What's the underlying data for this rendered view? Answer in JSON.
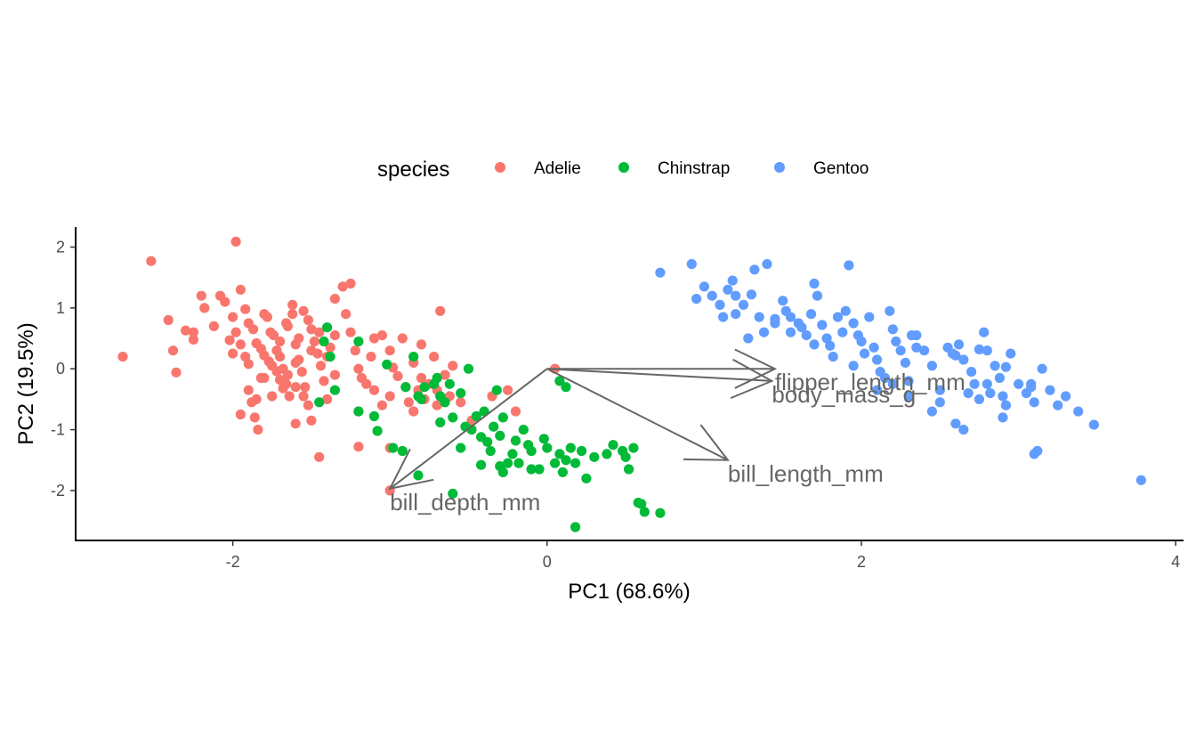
{
  "chart_data": {
    "type": "scatter",
    "title": "",
    "xlabel": "PC1 (68.6%)",
    "ylabel": "PC2 (19.5%)",
    "xlim": [
      -3.0,
      4.05
    ],
    "ylim": [
      -2.82,
      2.3
    ],
    "xticks": [
      -2,
      0,
      2,
      4
    ],
    "xtick_labels": [
      "-2",
      "0",
      "2",
      "4"
    ],
    "yticks": [
      -2,
      -1,
      0,
      1,
      2
    ],
    "ytick_labels": [
      "-2",
      "-1",
      "0",
      "1",
      "2"
    ],
    "grid": false,
    "legend": {
      "title": "species",
      "placement": "top"
    },
    "series": [
      {
        "name": "Adelie",
        "color": "#F8766D",
        "points": [
          [
            -2.7,
            0.2
          ],
          [
            -2.52,
            1.77
          ],
          [
            -2.41,
            0.8
          ],
          [
            -2.38,
            0.3
          ],
          [
            -2.36,
            -0.06
          ],
          [
            -2.3,
            0.63
          ],
          [
            -2.25,
            0.6
          ],
          [
            -2.25,
            0.48
          ],
          [
            -2.2,
            1.2
          ],
          [
            -2.18,
            1.0
          ],
          [
            -2.12,
            0.7
          ],
          [
            -2.08,
            1.2
          ],
          [
            -2.05,
            1.1
          ],
          [
            -2.02,
            0.47
          ],
          [
            -1.98,
            2.09
          ],
          [
            -1.95,
            1.3
          ],
          [
            -1.92,
            0.98
          ],
          [
            -1.9,
            0.75
          ],
          [
            -1.87,
            0.65
          ],
          [
            -1.85,
            0.42
          ],
          [
            -1.82,
            0.33
          ],
          [
            -1.8,
            0.22
          ],
          [
            -1.77,
            0.12
          ],
          [
            -1.75,
            0.05
          ],
          [
            -1.72,
            -0.04
          ],
          [
            -1.7,
            -0.18
          ],
          [
            -1.68,
            -0.32
          ],
          [
            -1.95,
            0.4
          ],
          [
            -1.92,
            0.2
          ],
          [
            -1.9,
            -0.35
          ],
          [
            -1.88,
            -0.55
          ],
          [
            -1.86,
            -0.8
          ],
          [
            -1.84,
            -1.0
          ],
          [
            -1.8,
            0.9
          ],
          [
            -1.78,
            0.85
          ],
          [
            -1.76,
            0.6
          ],
          [
            -1.74,
            0.55
          ],
          [
            -1.72,
            0.3
          ],
          [
            -1.7,
            0.2
          ],
          [
            -1.68,
            0.0
          ],
          [
            -1.66,
            -0.25
          ],
          [
            -1.64,
            -0.45
          ],
          [
            -1.62,
            1.05
          ],
          [
            -1.6,
            0.4
          ],
          [
            -1.58,
            0.15
          ],
          [
            -1.56,
            -0.05
          ],
          [
            -1.54,
            -0.3
          ],
          [
            -1.52,
            -0.6
          ],
          [
            -1.5,
            -0.85
          ],
          [
            -1.55,
            0.95
          ],
          [
            -1.52,
            0.8
          ],
          [
            -1.5,
            0.65
          ],
          [
            -1.48,
            0.45
          ],
          [
            -1.46,
            0.25
          ],
          [
            -1.44,
            0.05
          ],
          [
            -1.42,
            -0.2
          ],
          [
            -1.4,
            -0.5
          ],
          [
            -1.38,
            0.35
          ],
          [
            -1.35,
            0.55
          ],
          [
            -1.3,
            1.35
          ],
          [
            -1.28,
            0.9
          ],
          [
            -1.25,
            0.6
          ],
          [
            -1.22,
            0.3
          ],
          [
            -1.2,
            0.0
          ],
          [
            -1.35,
            1.15
          ],
          [
            -1.25,
            1.4
          ],
          [
            -1.18,
            -0.15
          ],
          [
            -1.15,
            -0.25
          ],
          [
            -1.12,
            0.2
          ],
          [
            -1.1,
            -0.35
          ],
          [
            -1.05,
            -0.6
          ],
          [
            -1.0,
            -0.45
          ],
          [
            -0.98,
            0.02
          ],
          [
            -0.95,
            -0.12
          ],
          [
            -0.92,
            0.5
          ],
          [
            -0.9,
            -0.3
          ],
          [
            -0.88,
            -0.55
          ],
          [
            -0.85,
            -0.7
          ],
          [
            -0.82,
            -0.35
          ],
          [
            -0.8,
            0.4
          ],
          [
            -0.78,
            -0.5
          ],
          [
            -0.75,
            -0.25
          ],
          [
            -0.72,
            0.2
          ],
          [
            -0.7,
            -0.35
          ],
          [
            -0.68,
            0.95
          ],
          [
            -0.65,
            -0.1
          ],
          [
            -0.62,
            -0.45
          ],
          [
            -0.55,
            -0.55
          ],
          [
            -0.48,
            -0.85
          ],
          [
            -0.35,
            -0.45
          ],
          [
            -1.6,
            -0.3
          ],
          [
            -1.65,
            0.7
          ],
          [
            -1.58,
            0.5
          ],
          [
            -1.45,
            -1.45
          ],
          [
            -1.4,
            0.2
          ],
          [
            -1.35,
            -0.1
          ],
          [
            -1.1,
            0.5
          ],
          [
            -1.05,
            0.55
          ],
          [
            -1.0,
            0.3
          ],
          [
            -1.2,
            -1.28
          ],
          [
            -1.0,
            -1.3
          ],
          [
            -1.95,
            -0.75
          ],
          [
            -1.85,
            -0.5
          ],
          [
            -1.82,
            -0.15
          ],
          [
            -1.75,
            -0.45
          ],
          [
            -1.7,
            0.45
          ],
          [
            -1.66,
            0.75
          ],
          [
            -1.62,
            0.9
          ],
          [
            -2.0,
            0.85
          ],
          [
            -1.98,
            0.6
          ],
          [
            -2.0,
            0.25
          ],
          [
            -1.9,
            0.08
          ],
          [
            -1.6,
            -0.9
          ],
          [
            -1.65,
            -0.1
          ],
          [
            -1.8,
            -0.15
          ],
          [
            -1.5,
            0.3
          ],
          [
            -1.45,
            0.6
          ],
          [
            -1.55,
            -0.45
          ],
          [
            -1.6,
            0.1
          ],
          [
            -1.2,
            -0.7
          ],
          [
            -0.85,
            0.1
          ],
          [
            -0.8,
            -0.15
          ],
          [
            -1.0,
            -2.0
          ],
          [
            0.05,
            0.0
          ],
          [
            -0.2,
            -0.7
          ],
          [
            -0.25,
            -0.35
          ],
          [
            -0.7,
            -0.6
          ],
          [
            -0.6,
            0.05
          ]
        ]
      },
      {
        "name": "Chinstrap",
        "color": "#00BA38",
        "points": [
          [
            -1.4,
            0.68
          ],
          [
            -1.42,
            0.45
          ],
          [
            -1.38,
            0.2
          ],
          [
            -1.2,
            0.45
          ],
          [
            -1.35,
            -0.35
          ],
          [
            -1.2,
            -0.7
          ],
          [
            -1.1,
            -0.78
          ],
          [
            -1.08,
            -1.02
          ],
          [
            -1.02,
            0.07
          ],
          [
            -0.98,
            -1.3
          ],
          [
            -0.9,
            -0.3
          ],
          [
            -0.85,
            0.2
          ],
          [
            -0.82,
            -0.45
          ],
          [
            -0.8,
            -0.5
          ],
          [
            -0.78,
            -0.3
          ],
          [
            -0.72,
            -0.25
          ],
          [
            -0.7,
            -0.15
          ],
          [
            -0.68,
            -0.45
          ],
          [
            -0.65,
            -0.55
          ],
          [
            -0.6,
            -0.8
          ],
          [
            -0.55,
            -0.4
          ],
          [
            -0.52,
            -0.95
          ],
          [
            -0.5,
            0.0
          ],
          [
            -0.48,
            -1.0
          ],
          [
            -0.45,
            -0.78
          ],
          [
            -0.42,
            -1.12
          ],
          [
            -0.4,
            -0.7
          ],
          [
            -0.38,
            -1.2
          ],
          [
            -0.36,
            -1.35
          ],
          [
            -0.34,
            -0.95
          ],
          [
            -0.3,
            -1.1
          ],
          [
            -0.28,
            -0.8
          ],
          [
            -0.25,
            -1.55
          ],
          [
            -0.22,
            -1.4
          ],
          [
            -0.2,
            -1.18
          ],
          [
            -0.18,
            -1.55
          ],
          [
            -0.15,
            -1.0
          ],
          [
            -0.12,
            -1.25
          ],
          [
            -0.1,
            -1.35
          ],
          [
            -0.05,
            -1.65
          ],
          [
            -0.02,
            -1.15
          ],
          [
            0.0,
            -1.3
          ],
          [
            0.05,
            -1.55
          ],
          [
            0.08,
            -1.4
          ],
          [
            0.1,
            -1.7
          ],
          [
            0.12,
            -1.5
          ],
          [
            0.15,
            -1.3
          ],
          [
            0.18,
            -1.55
          ],
          [
            0.22,
            -1.35
          ],
          [
            0.25,
            -1.8
          ],
          [
            0.3,
            -1.45
          ],
          [
            0.38,
            -1.4
          ],
          [
            0.42,
            -1.25
          ],
          [
            0.48,
            -1.35
          ],
          [
            0.5,
            -1.45
          ],
          [
            0.52,
            -1.65
          ],
          [
            0.55,
            -1.3
          ],
          [
            0.58,
            -2.2
          ],
          [
            0.6,
            -2.22
          ],
          [
            0.62,
            -2.35
          ],
          [
            0.72,
            -2.37
          ],
          [
            0.18,
            -2.6
          ],
          [
            -0.1,
            -1.65
          ],
          [
            -0.3,
            -1.6
          ],
          [
            -0.42,
            -1.58
          ],
          [
            -0.6,
            -2.05
          ],
          [
            -0.82,
            -1.75
          ],
          [
            -0.92,
            -1.35
          ],
          [
            -1.45,
            -0.55
          ],
          [
            -0.68,
            -0.88
          ],
          [
            -0.55,
            -1.3
          ],
          [
            0.08,
            -0.2
          ],
          [
            0.12,
            -0.3
          ],
          [
            -0.32,
            -0.35
          ],
          [
            -0.62,
            -0.25
          ],
          [
            -0.28,
            -1.7
          ]
        ]
      },
      {
        "name": "Gentoo",
        "color": "#619CFF",
        "points": [
          [
            0.72,
            1.58
          ],
          [
            0.92,
            1.72
          ],
          [
            0.95,
            1.15
          ],
          [
            1.0,
            1.35
          ],
          [
            1.05,
            1.2
          ],
          [
            1.1,
            1.05
          ],
          [
            1.12,
            0.85
          ],
          [
            1.15,
            1.3
          ],
          [
            1.18,
            1.45
          ],
          [
            1.2,
            1.2
          ],
          [
            1.2,
            0.9
          ],
          [
            1.25,
            1.05
          ],
          [
            1.3,
            1.22
          ],
          [
            1.32,
            1.63
          ],
          [
            1.38,
            0.6
          ],
          [
            1.4,
            1.72
          ],
          [
            1.45,
            0.82
          ],
          [
            1.5,
            1.12
          ],
          [
            1.52,
            0.95
          ],
          [
            1.55,
            0.85
          ],
          [
            1.6,
            0.75
          ],
          [
            1.62,
            0.68
          ],
          [
            1.65,
            0.55
          ],
          [
            1.68,
            0.9
          ],
          [
            1.7,
            1.4
          ],
          [
            1.72,
            1.2
          ],
          [
            1.75,
            0.72
          ],
          [
            1.78,
            0.5
          ],
          [
            1.8,
            0.38
          ],
          [
            1.82,
            0.2
          ],
          [
            1.85,
            0.85
          ],
          [
            1.88,
            0.6
          ],
          [
            1.9,
            0.95
          ],
          [
            1.92,
            1.7
          ],
          [
            1.95,
            0.75
          ],
          [
            1.98,
            0.55
          ],
          [
            2.0,
            0.45
          ],
          [
            2.02,
            0.25
          ],
          [
            2.05,
            0.85
          ],
          [
            2.08,
            0.35
          ],
          [
            2.1,
            0.15
          ],
          [
            2.12,
            -0.05
          ],
          [
            2.15,
            -0.15
          ],
          [
            2.18,
            0.95
          ],
          [
            2.2,
            0.65
          ],
          [
            2.22,
            0.45
          ],
          [
            2.25,
            0.3
          ],
          [
            2.28,
            0.1
          ],
          [
            2.3,
            -0.2
          ],
          [
            2.32,
            0.55
          ],
          [
            2.35,
            0.35
          ],
          [
            2.4,
            0.3
          ],
          [
            2.45,
            0.05
          ],
          [
            2.5,
            -0.35
          ],
          [
            2.55,
            0.35
          ],
          [
            2.6,
            0.22
          ],
          [
            2.62,
            0.4
          ],
          [
            2.65,
            0.15
          ],
          [
            2.7,
            -0.05
          ],
          [
            2.72,
            -0.25
          ],
          [
            2.75,
            -0.5
          ],
          [
            2.78,
            0.6
          ],
          [
            2.8,
            0.3
          ],
          [
            2.82,
            -0.4
          ],
          [
            2.85,
            0.05
          ],
          [
            2.88,
            -0.15
          ],
          [
            2.9,
            -0.45
          ],
          [
            2.92,
            -0.6
          ],
          [
            2.95,
            0.25
          ],
          [
            3.0,
            -0.25
          ],
          [
            3.05,
            -0.4
          ],
          [
            3.1,
            -0.55
          ],
          [
            3.15,
            0.0
          ],
          [
            3.2,
            -0.35
          ],
          [
            3.25,
            -0.6
          ],
          [
            3.3,
            -0.45
          ],
          [
            3.38,
            -0.7
          ],
          [
            3.48,
            -0.92
          ],
          [
            3.78,
            -1.83
          ],
          [
            3.1,
            -1.4
          ],
          [
            3.12,
            -1.35
          ],
          [
            2.9,
            -0.8
          ],
          [
            2.65,
            -1.0
          ],
          [
            2.6,
            -0.9
          ],
          [
            2.5,
            -0.55
          ],
          [
            2.45,
            -0.7
          ],
          [
            2.3,
            -0.45
          ],
          [
            2.2,
            -0.25
          ],
          [
            2.1,
            -0.35
          ],
          [
            1.95,
            0.05
          ],
          [
            1.7,
            0.4
          ],
          [
            1.55,
            0.6
          ],
          [
            1.45,
            0.75
          ],
          [
            1.35,
            0.85
          ],
          [
            1.28,
            0.5
          ],
          [
            2.35,
            0.55
          ],
          [
            2.68,
            -0.4
          ],
          [
            2.8,
            -0.25
          ],
          [
            2.92,
            0.03
          ],
          [
            3.08,
            -0.25
          ],
          [
            3.08,
            -0.3
          ],
          [
            2.75,
            0.32
          ],
          [
            2.58,
            0.25
          ]
        ]
      }
    ],
    "arrows": [
      {
        "label": "flipper_length_mm",
        "x": 1.45,
        "y": 0.0
      },
      {
        "label": "body_mass_g",
        "x": 1.43,
        "y": -0.2
      },
      {
        "label": "bill_length_mm",
        "x": 1.15,
        "y": -1.5
      },
      {
        "label": "bill_depth_mm",
        "x": -1.0,
        "y": -1.97
      }
    ],
    "arrow_color": "#666666"
  }
}
